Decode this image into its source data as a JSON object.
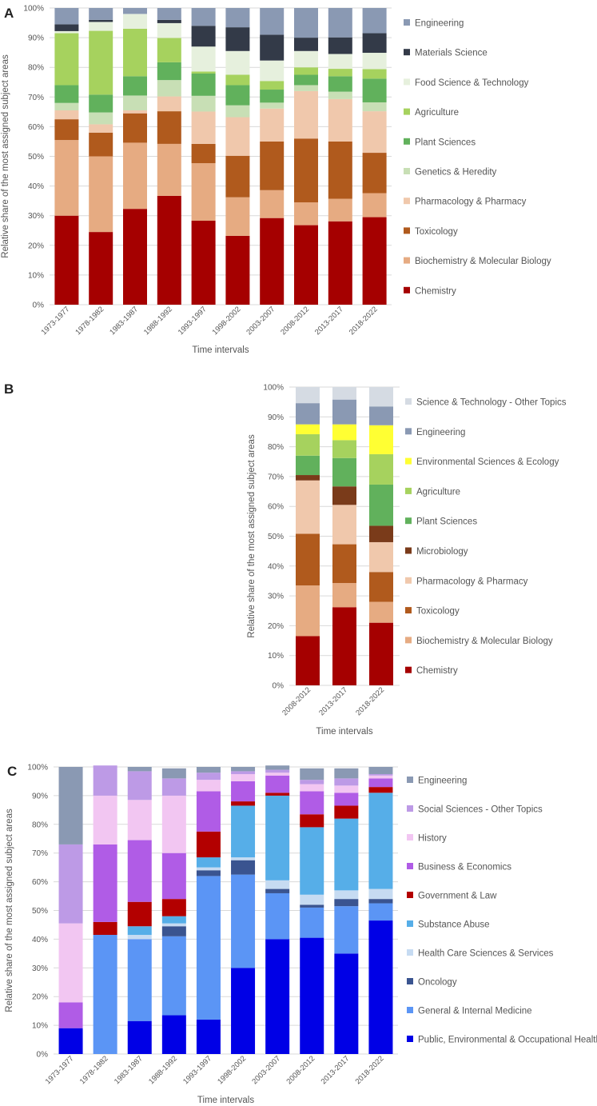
{
  "chart_data": [
    {
      "panel_label": "A",
      "type": "bar",
      "stacked": true,
      "categories": [
        "1973-1977",
        "1978-1982",
        "1983-1987",
        "1988-1992",
        "1993-1997",
        "1998-2002",
        "2003-2007",
        "2008-2012",
        "2013-2017",
        "2018-2022"
      ],
      "xlabel": "Time intervals",
      "ylabel": "Relative share of the most assigned subject areas",
      "ylim": [
        0,
        100
      ],
      "yticks": [
        "0%",
        "10%",
        "20%",
        "30%",
        "40%",
        "50%",
        "60%",
        "70%",
        "80%",
        "90%",
        "100%"
      ],
      "grid": true,
      "legend_position": "right",
      "series": [
        {
          "name": "Chemistry",
          "color": "#a50000",
          "values": [
            30,
            24.5,
            32.3,
            36.7,
            28.3,
            23.2,
            29.2,
            26.8,
            28.1,
            29.5
          ]
        },
        {
          "name": "Biochemistry & Molecular Biology",
          "color": "#e6ab82",
          "values": [
            25.5,
            25.5,
            22.3,
            17.5,
            19.4,
            13,
            9.4,
            7.7,
            7.6,
            8.1
          ]
        },
        {
          "name": "Toxicology",
          "color": "#b05a1d",
          "values": [
            7,
            8,
            9.9,
            11,
            6.5,
            14,
            16.4,
            21.5,
            19.3,
            13.6
          ]
        },
        {
          "name": "Pharmacology & Pharmacy",
          "color": "#f0c8ac",
          "values": [
            3,
            2.8,
            1,
            5,
            10.9,
            13,
            11.1,
            16,
            14.3,
            14
          ]
        },
        {
          "name": "Genetics & Heredity",
          "color": "#c8dfb5",
          "values": [
            2.5,
            4,
            5,
            5.5,
            5.3,
            4,
            2,
            2,
            2.5,
            3
          ]
        },
        {
          "name": "Plant Sciences",
          "color": "#61b15c",
          "values": [
            6,
            6,
            6.5,
            6,
            7.5,
            6.8,
            4.4,
            3.5,
            5.2,
            8
          ]
        },
        {
          "name": "Agriculture",
          "color": "#a6d25e",
          "values": [
            17.5,
            21.5,
            16,
            8.2,
            0.7,
            3.5,
            2.9,
            2.5,
            2.5,
            3.2
          ]
        },
        {
          "name": "Food Science & Technology",
          "color": "#e6f0dd",
          "values": [
            0.7,
            3,
            5,
            5,
            8.4,
            8,
            6.9,
            5.5,
            5,
            5.5
          ]
        },
        {
          "name": "Materials Science",
          "color": "#333a48",
          "values": [
            2.3,
            0.7,
            0,
            1.1,
            7,
            8,
            8.7,
            4.5,
            5.6,
            6.6
          ]
        },
        {
          "name": "Engineering",
          "color": "#8a99b3",
          "values": [
            5.5,
            4,
            2,
            4,
            6,
            6.5,
            9,
            10,
            9.9,
            8.5
          ]
        }
      ]
    },
    {
      "panel_label": "B",
      "type": "bar",
      "stacked": true,
      "categories": [
        "2008-2012",
        "2013-2017",
        "2018-2022"
      ],
      "xlabel": "Time intervals",
      "ylabel": "Relative share of the most assigned subject areas",
      "ylim": [
        0,
        100
      ],
      "yticks": [
        "0%",
        "10%",
        "20%",
        "30%",
        "40%",
        "50%",
        "60%",
        "70%",
        "80%",
        "90%",
        "100%"
      ],
      "grid": true,
      "legend_position": "right",
      "series": [
        {
          "name": "Chemistry",
          "color": "#a50000",
          "values": [
            16.5,
            26.2,
            21
          ]
        },
        {
          "name": "Biochemistry & Molecular Biology",
          "color": "#e6ab82",
          "values": [
            17,
            8.1,
            7
          ]
        },
        {
          "name": "Toxicology",
          "color": "#b05a1d",
          "values": [
            17.3,
            13,
            10
          ]
        },
        {
          "name": "Pharmacology & Pharmacy",
          "color": "#f0c8ac",
          "values": [
            17.9,
            13.2,
            10
          ]
        },
        {
          "name": "Microbiology",
          "color": "#7a3b1a",
          "values": [
            1.8,
            6.2,
            5.5
          ]
        },
        {
          "name": "Plant Sciences",
          "color": "#61b15c",
          "values": [
            6.5,
            9.5,
            13.8
          ]
        },
        {
          "name": "Agriculture",
          "color": "#a6d25e",
          "values": [
            7.2,
            6,
            10.2
          ]
        },
        {
          "name": "Environmental Sciences & Ecology",
          "color": "#ffff33",
          "values": [
            3.3,
            5.3,
            9.7
          ]
        },
        {
          "name": "Engineering",
          "color": "#8a99b3",
          "values": [
            7.1,
            8.3,
            6.3
          ]
        },
        {
          "name": "Science & Technology - Other Topics",
          "color": "#d5dbe3",
          "values": [
            5.4,
            4.2,
            6.5
          ]
        }
      ]
    },
    {
      "panel_label": "C",
      "type": "bar",
      "stacked": true,
      "categories": [
        "1973-1977",
        "1978-1982",
        "1983-1987",
        "1988-1992",
        "1993-1997",
        "1998-2002",
        "2003-2007",
        "2008-2012",
        "2013-2017",
        "2018-2022"
      ],
      "xlabel": "Time intervals",
      "ylabel": "Relative share of the most assigned subject areas",
      "ylim": [
        0,
        100
      ],
      "yticks": [
        "0%",
        "10%",
        "20%",
        "30%",
        "40%",
        "50%",
        "60%",
        "70%",
        "80%",
        "90%",
        "100%"
      ],
      "grid": true,
      "legend_position": "right",
      "series": [
        {
          "name": "Public, Environmental & Occupational Health",
          "color": "#0000e6",
          "values": [
            9,
            0,
            11.5,
            13.5,
            12,
            30,
            40,
            40.5,
            35,
            46.5
          ]
        },
        {
          "name": "General & Internal Medicine",
          "color": "#5b95f5",
          "values": [
            0,
            41.5,
            28.5,
            27.5,
            50,
            32.5,
            16,
            10.5,
            16.5,
            6
          ]
        },
        {
          "name": "Oncology",
          "color": "#3a5490",
          "values": [
            0,
            0,
            0,
            3.5,
            2,
            5,
            1.5,
            1,
            2.5,
            1.5
          ]
        },
        {
          "name": "Health Care Sciences & Services",
          "color": "#c6dbf2",
          "values": [
            0,
            0,
            1.5,
            1,
            1,
            1,
            3,
            3.5,
            3,
            3.5
          ]
        },
        {
          "name": "Substance Abuse",
          "color": "#56aee8",
          "values": [
            0,
            0,
            3,
            2.5,
            3.5,
            18,
            29.5,
            23.5,
            25,
            33.5
          ]
        },
        {
          "name": "Government & Law",
          "color": "#b30000",
          "values": [
            0,
            4.5,
            8.5,
            6,
            9,
            1.5,
            1,
            4.5,
            4.5,
            2
          ]
        },
        {
          "name": "Business & Economics",
          "color": "#b05ce6",
          "values": [
            9,
            27,
            21.5,
            16,
            14,
            7,
            6,
            8,
            4.5,
            3
          ]
        },
        {
          "name": "History",
          "color": "#f2c6f2",
          "values": [
            27.5,
            17,
            14,
            20,
            4,
            2.5,
            1,
            2.5,
            2.5,
            1
          ]
        },
        {
          "name": "Social Sciences - Other Topics",
          "color": "#bd9ae6",
          "values": [
            27.5,
            10.5,
            10,
            6,
            2.5,
            1,
            1,
            1.5,
            2.5,
            0.5
          ]
        },
        {
          "name": "Engineering",
          "color": "#8a99b3",
          "values": [
            27,
            0,
            1.5,
            3.5,
            2,
            1.5,
            1.5,
            4,
            3.5,
            2.5
          ]
        }
      ]
    }
  ]
}
